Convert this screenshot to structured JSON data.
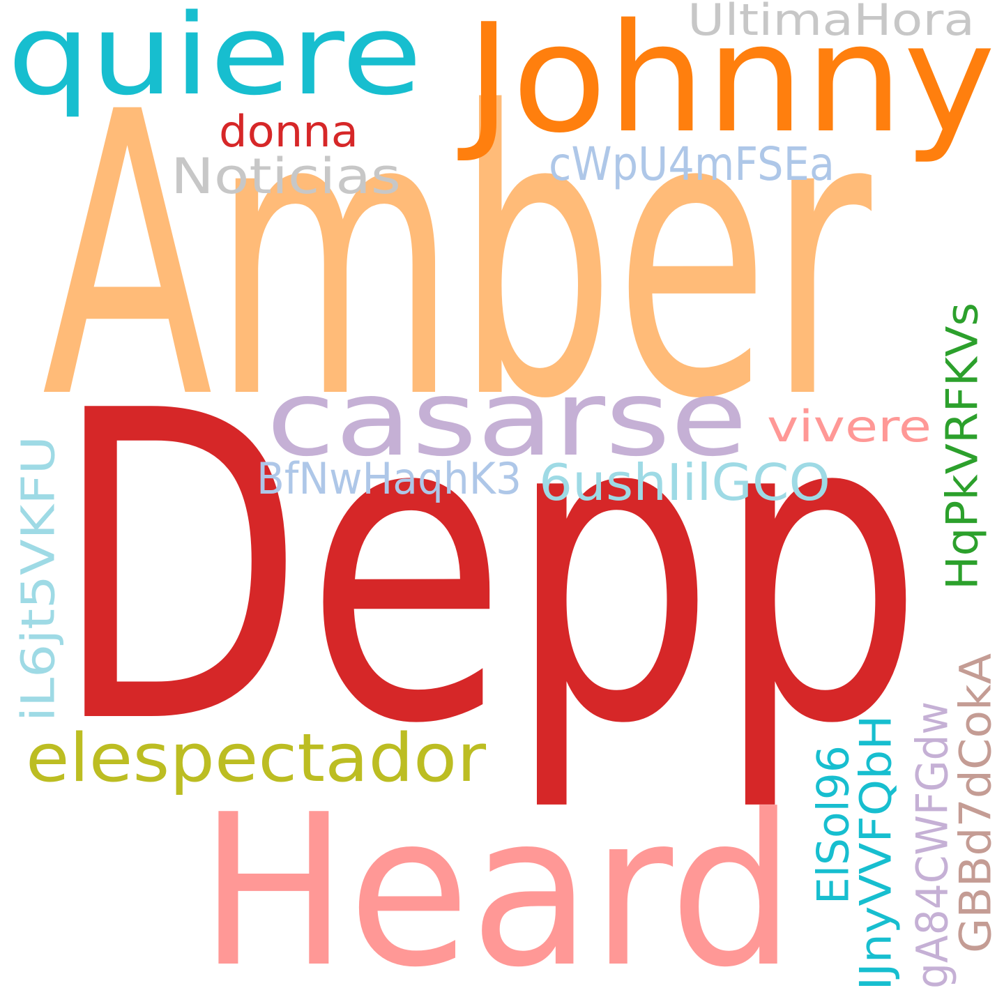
{
  "background": "#ffffff",
  "words": [
    {
      "id": "amber",
      "text": "Amber",
      "color": "#ffbb78"
    },
    {
      "id": "depp",
      "text": "Depp",
      "color": "#d62728"
    },
    {
      "id": "heard",
      "text": "Heard",
      "color": "#ff9896"
    },
    {
      "id": "johnny",
      "text": "Johnny",
      "color": "#ff7f0e"
    },
    {
      "id": "quiere",
      "text": "quiere",
      "color": "#17becf"
    },
    {
      "id": "casarse",
      "text": "casarse",
      "color": "#c5b0d5"
    },
    {
      "id": "elespectador",
      "text": "elespectador",
      "color": "#bcbd22"
    },
    {
      "id": "ultimahora",
      "text": "UltimaHora",
      "color": "#c7c7c7"
    },
    {
      "id": "donna",
      "text": "donna",
      "color": "#d62728"
    },
    {
      "id": "noticias",
      "text": "Noticias",
      "color": "#c7c7c7"
    },
    {
      "id": "cwpu4mfsea",
      "text": "cWpU4mFSEa",
      "color": "#aec7e8"
    },
    {
      "id": "vivere",
      "text": "vivere",
      "color": "#ff9896"
    },
    {
      "id": "bfnwhaqhk3",
      "text": "BfNwHaqhK3",
      "color": "#aec7e8"
    },
    {
      "id": "6ushiilgco",
      "text": "6ushIilGCO",
      "color": "#9edae5"
    },
    {
      "id": "hqpkvrfkvs",
      "text": "HqPkVRFKVs",
      "color": "#2ca02c"
    },
    {
      "id": "il6jt5vkfu",
      "text": "iL6jt5VKFU",
      "color": "#9edae5"
    },
    {
      "id": "elsol96",
      "text": "ElSol96",
      "color": "#17becf"
    },
    {
      "id": "ijnyvvfqbh",
      "text": "IJnyVVFQbH",
      "color": "#17becf"
    },
    {
      "id": "ga84cwfgdw",
      "text": "gA84CWFGdw",
      "color": "#c5b0d5"
    },
    {
      "id": "gbbd7dcoka",
      "text": "GBBd7dCokA",
      "color": "#c49c94"
    }
  ]
}
